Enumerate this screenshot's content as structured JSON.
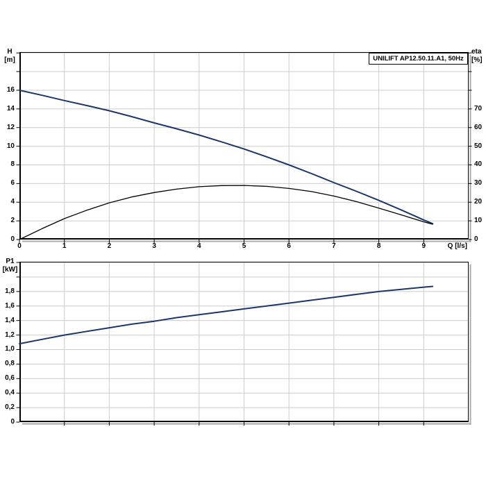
{
  "title_box": {
    "label": "UNILIFT AP12.50.11.A1, 50Hz"
  },
  "colors": {
    "curve_blue": "#1b3669",
    "curve_black": "#000000",
    "grid": "#cccccc",
    "border": "#000000",
    "shadow": "#a8a8a8",
    "background": "#ffffff"
  },
  "chart_data": [
    {
      "type": "line",
      "title": "UNILIFT AP12.50.11.A1, 50Hz",
      "grid": "on",
      "x_axis": {
        "label": "Q [l/s]",
        "min": 0,
        "max": 10,
        "grid_step": 1,
        "tick_values": [
          0,
          1,
          2,
          3,
          4,
          5,
          6,
          7,
          8,
          9
        ],
        "tick_labels": [
          "0",
          "1",
          "2",
          "3",
          "4",
          "5",
          "6",
          "7",
          "8",
          "9"
        ],
        "show_tick_labels": true
      },
      "y_left": {
        "label_lines": [
          "H",
          "[m]"
        ],
        "min": 0,
        "max": 20.09,
        "grid_step": 2,
        "tick_values": [
          0,
          2,
          4,
          6,
          8,
          10,
          12,
          14,
          16
        ],
        "tick_labels": [
          "0",
          "2",
          "4",
          "6",
          "8",
          "10",
          "12",
          "14",
          "16"
        ]
      },
      "y_right": {
        "label_lines": [
          "eta",
          "[%]"
        ],
        "min": 0,
        "max": 100.46,
        "tick_values": [
          0,
          10,
          20,
          30,
          40,
          50,
          60,
          70
        ],
        "tick_labels": [
          "0",
          "10",
          "20",
          "30",
          "40",
          "50",
          "60",
          "70"
        ]
      },
      "series": [
        {
          "name": "head-curve-QH",
          "axis": "left",
          "color_key": "curve_blue",
          "stroke_width": 2,
          "points": [
            [
              0,
              16
            ],
            [
              0.5,
              15.46
            ],
            [
              1,
              14.9
            ],
            [
              1.5,
              14.36
            ],
            [
              2,
              13.8
            ],
            [
              2.5,
              13.17
            ],
            [
              3,
              12.5
            ],
            [
              3.5,
              11.87
            ],
            [
              4,
              11.2
            ],
            [
              4.5,
              10.47
            ],
            [
              5,
              9.7
            ],
            [
              5.5,
              8.87
            ],
            [
              6,
              8.0
            ],
            [
              6.5,
              7.07
            ],
            [
              7,
              6.1
            ],
            [
              7.5,
              5.17
            ],
            [
              8,
              4.2
            ],
            [
              8.5,
              3.17
            ],
            [
              9,
              2.1
            ],
            [
              9.2,
              1.7
            ]
          ]
        },
        {
          "name": "efficiency-curve-eta",
          "axis": "right",
          "color_key": "curve_black",
          "stroke_width": 1.3,
          "points": [
            [
              0,
              0
            ],
            [
              0.5,
              5.8
            ],
            [
              1,
              11.2
            ],
            [
              1.5,
              15.7
            ],
            [
              2,
              19.7
            ],
            [
              2.5,
              22.8
            ],
            [
              3,
              25.2
            ],
            [
              3.5,
              27.0
            ],
            [
              4,
              28.3
            ],
            [
              4.5,
              28.9
            ],
            [
              5,
              29.0
            ],
            [
              5.5,
              28.5
            ],
            [
              6,
              27.4
            ],
            [
              6.5,
              25.7
            ],
            [
              7,
              23.3
            ],
            [
              7.5,
              20.3
            ],
            [
              8,
              16.8
            ],
            [
              8.5,
              13.2
            ],
            [
              9,
              9.5
            ],
            [
              9.2,
              8.2
            ]
          ]
        }
      ]
    },
    {
      "type": "line",
      "title": "",
      "grid": "on",
      "x_axis": {
        "label": "",
        "min": 0,
        "max": 10,
        "grid_step": 1,
        "tick_values": [
          1,
          2,
          3,
          4,
          5,
          6,
          7,
          8,
          9
        ],
        "tick_labels": [],
        "show_tick_labels": false
      },
      "y_left": {
        "label_lines": [
          "P1",
          "[kW]"
        ],
        "min": 0,
        "max": 2.21,
        "grid_step": 0.2,
        "tick_values": [
          0,
          0.2,
          0.4,
          0.6,
          0.8,
          1.0,
          1.2,
          1.4,
          1.6,
          1.8
        ],
        "tick_labels": [
          "0",
          "0,2",
          "0,4",
          "0,6",
          "0,8",
          "1,0",
          "1,2",
          "1,4",
          "1,6",
          "1,8"
        ]
      },
      "series": [
        {
          "name": "power-curve-P1",
          "axis": "left",
          "color_key": "curve_blue",
          "stroke_width": 2,
          "points": [
            [
              0,
              1.08
            ],
            [
              0.5,
              1.14
            ],
            [
              1,
              1.2
            ],
            [
              1.5,
              1.25
            ],
            [
              2,
              1.3
            ],
            [
              2.5,
              1.35
            ],
            [
              3,
              1.39
            ],
            [
              3.5,
              1.44
            ],
            [
              4,
              1.48
            ],
            [
              4.5,
              1.52
            ],
            [
              5,
              1.56
            ],
            [
              5.5,
              1.6
            ],
            [
              6,
              1.64
            ],
            [
              6.5,
              1.68
            ],
            [
              7,
              1.72
            ],
            [
              7.5,
              1.76
            ],
            [
              8,
              1.8
            ],
            [
              8.5,
              1.83
            ],
            [
              9,
              1.86
            ],
            [
              9.2,
              1.87
            ]
          ]
        }
      ]
    }
  ]
}
